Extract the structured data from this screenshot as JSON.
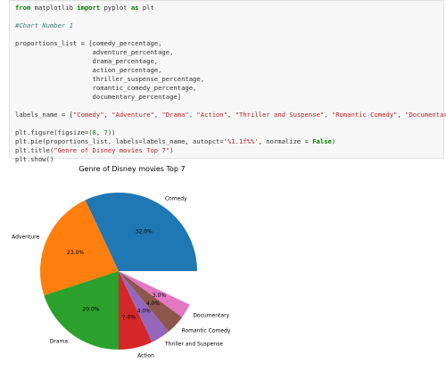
{
  "code": {
    "line1": [
      "from",
      " matplotlib ",
      "import",
      " pyplot ",
      "as",
      " plt"
    ],
    "comment": "#Chart Number 1",
    "proportions": [
      "proportions_list = [comedy_percentage,",
      "                    adventure_percentage,",
      "                    drama_percentage,",
      "                    action_percentage,",
      "                    thriller_suspense_percentage,",
      "                    romantic_comedy_percentage,",
      "                    documentary_percentage]"
    ],
    "labels_prefix": "labels_name = [",
    "labels_items": [
      "\"Comedy\"",
      "\"Adventure\"",
      "\"Drama\"",
      "\"Action\"",
      "\"Thriller and Suspense\"",
      "\"Romantic Comedy\"",
      "\"Documentary\""
    ],
    "labels_suffix": "]",
    "figure_prefix": "plt.figure(figsize=(",
    "figure_nums": [
      "8",
      "7"
    ],
    "figure_suffix": "))",
    "pie_prefix": "plt.pie(proportions_list, labels=labels_name, autopct=",
    "pie_str": "'%1.1f%%'",
    "pie_mid": ", normalize = ",
    "pie_bool": "False",
    "pie_suffix": ")",
    "title_prefix": "plt.title(",
    "title_str": "\"Genre of Disney movies Top 7\"",
    "title_suffix": ")",
    "show": "plt.show()"
  },
  "chart_data": {
    "type": "pie",
    "title": "Genre of Disney movies Top 7",
    "labels": [
      "Comedy",
      "Adventure",
      "Drama",
      "Action",
      "Thriller and Suspense",
      "Romantic Comedy",
      "Documentary"
    ],
    "values": [
      32.0,
      23.0,
      20.0,
      7.0,
      4.0,
      4.0,
      3.0
    ],
    "value_labels": [
      "32.0%",
      "23.0%",
      "20.0%",
      "7.0%",
      "4.0%",
      "4.0%",
      "3.0%"
    ],
    "colors": [
      "#1f77b4",
      "#ff7f0e",
      "#2ca02c",
      "#d62728",
      "#9467bd",
      "#8c564b",
      "#e377c2"
    ],
    "normalize": false
  }
}
